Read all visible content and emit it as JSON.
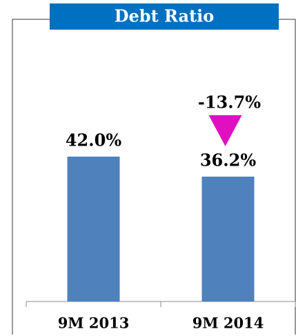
{
  "chart_data": {
    "type": "bar",
    "title": "Debt Ratio",
    "categories": [
      "9M 2013",
      "9M 2014"
    ],
    "values": [
      42.0,
      36.2
    ],
    "value_labels": [
      "42.0%",
      "36.2%"
    ],
    "color": "#4f81bd",
    "ylim": [
      0,
      60
    ],
    "annotation": "-13.7%",
    "annotation_color": "#e010c0"
  }
}
